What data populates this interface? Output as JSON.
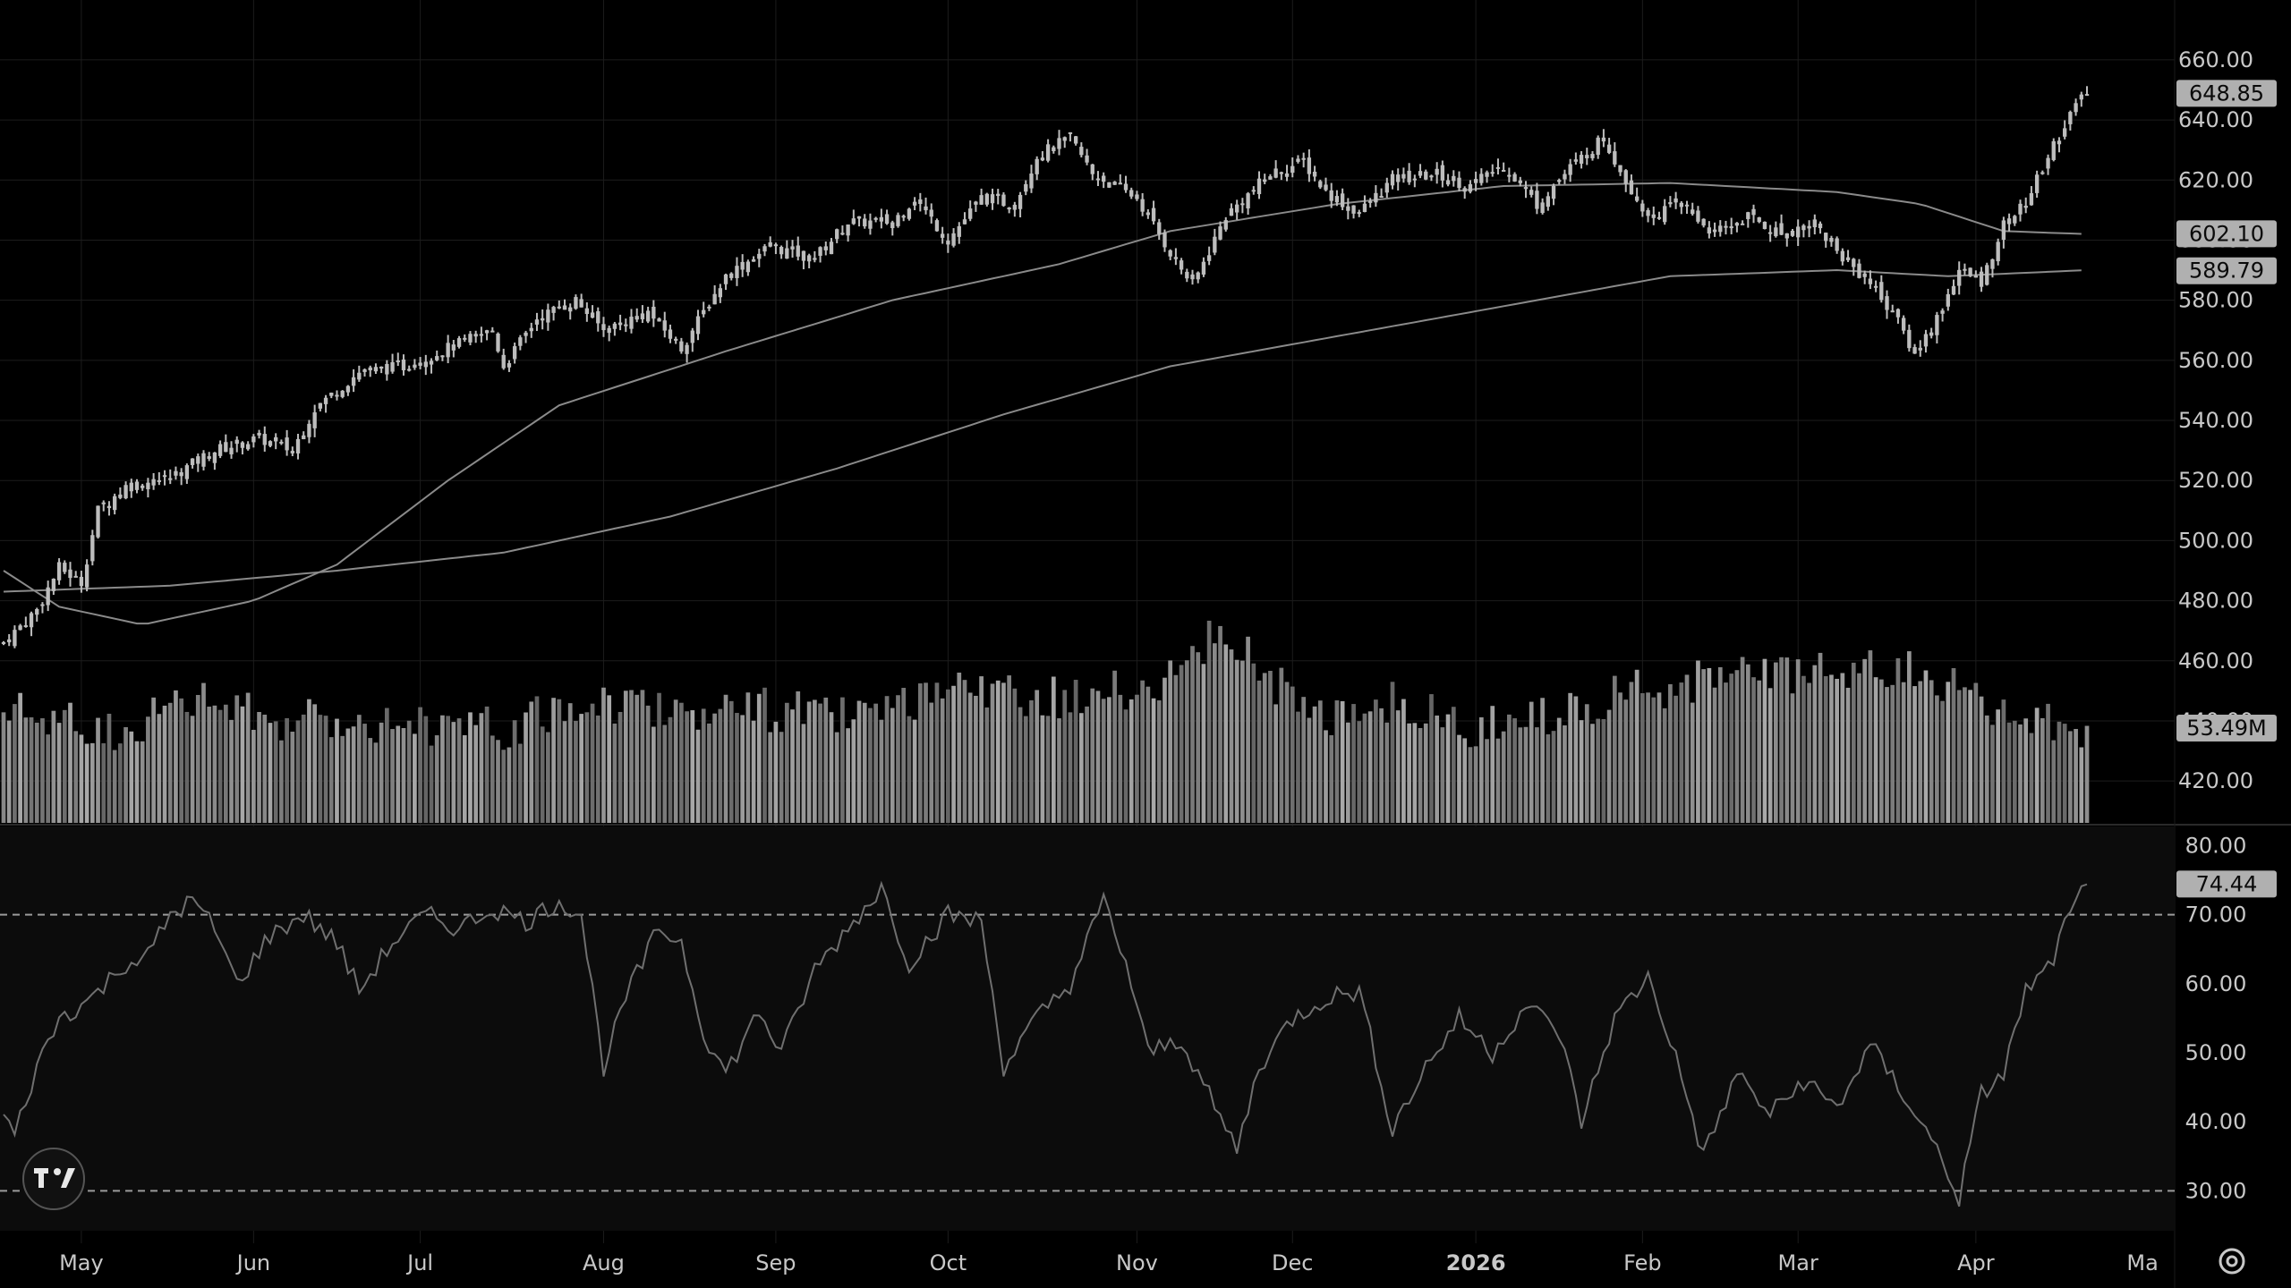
{
  "chart_data": [
    {
      "type": "candlestick",
      "panel": "price",
      "y_ticks": [
        "660.00",
        "640.00",
        "620.00",
        "600.00",
        "580.00",
        "560.00",
        "540.00",
        "520.00",
        "500.00",
        "480.00",
        "460.00",
        "440.00",
        "420.00"
      ],
      "ylim": [
        412,
        668
      ],
      "current_price": "648.85",
      "current_price_value": 648.85,
      "ma_labels": [
        "602.10",
        "589.79"
      ],
      "ma_values": [
        602.1,
        589.79
      ],
      "approx_close_path": [
        {
          "t": 0,
          "v": 466
        },
        {
          "t": 6,
          "v": 477
        },
        {
          "t": 10,
          "v": 491
        },
        {
          "t": 14,
          "v": 486
        },
        {
          "t": 17,
          "v": 510
        },
        {
          "t": 22,
          "v": 518
        },
        {
          "t": 30,
          "v": 521
        },
        {
          "t": 38,
          "v": 530
        },
        {
          "t": 46,
          "v": 534
        },
        {
          "t": 52,
          "v": 530
        },
        {
          "t": 56,
          "v": 544
        },
        {
          "t": 64,
          "v": 556
        },
        {
          "t": 72,
          "v": 558
        },
        {
          "t": 80,
          "v": 564
        },
        {
          "t": 88,
          "v": 570
        },
        {
          "t": 90,
          "v": 558
        },
        {
          "t": 96,
          "v": 574
        },
        {
          "t": 103,
          "v": 580
        },
        {
          "t": 108,
          "v": 570
        },
        {
          "t": 116,
          "v": 576
        },
        {
          "t": 122,
          "v": 564
        },
        {
          "t": 130,
          "v": 588
        },
        {
          "t": 138,
          "v": 598
        },
        {
          "t": 146,
          "v": 594
        },
        {
          "t": 152,
          "v": 606
        },
        {
          "t": 160,
          "v": 606
        },
        {
          "t": 164,
          "v": 614
        },
        {
          "t": 170,
          "v": 600
        },
        {
          "t": 176,
          "v": 614
        },
        {
          "t": 182,
          "v": 612
        },
        {
          "t": 186,
          "v": 628
        },
        {
          "t": 192,
          "v": 634
        },
        {
          "t": 196,
          "v": 622
        },
        {
          "t": 204,
          "v": 614
        },
        {
          "t": 210,
          "v": 596
        },
        {
          "t": 214,
          "v": 585
        },
        {
          "t": 220,
          "v": 608
        },
        {
          "t": 228,
          "v": 622
        },
        {
          "t": 234,
          "v": 626
        },
        {
          "t": 238,
          "v": 616
        },
        {
          "t": 244,
          "v": 609
        },
        {
          "t": 250,
          "v": 620
        },
        {
          "t": 258,
          "v": 622
        },
        {
          "t": 264,
          "v": 618
        },
        {
          "t": 270,
          "v": 625
        },
        {
          "t": 276,
          "v": 612
        },
        {
          "t": 282,
          "v": 624
        },
        {
          "t": 288,
          "v": 634
        },
        {
          "t": 292,
          "v": 620
        },
        {
          "t": 296,
          "v": 608
        },
        {
          "t": 302,
          "v": 612
        },
        {
          "t": 308,
          "v": 602
        },
        {
          "t": 314,
          "v": 608
        },
        {
          "t": 320,
          "v": 602
        },
        {
          "t": 326,
          "v": 606
        },
        {
          "t": 330,
          "v": 596
        },
        {
          "t": 336,
          "v": 586
        },
        {
          "t": 340,
          "v": 576
        },
        {
          "t": 344,
          "v": 562
        },
        {
          "t": 348,
          "v": 574
        },
        {
          "t": 352,
          "v": 590
        },
        {
          "t": 356,
          "v": 586
        },
        {
          "t": 360,
          "v": 605
        },
        {
          "t": 364,
          "v": 612
        },
        {
          "t": 368,
          "v": 628
        },
        {
          "t": 372,
          "v": 642
        },
        {
          "t": 375,
          "v": 649
        }
      ],
      "ma_long_path": [
        {
          "t": 0,
          "v": 483
        },
        {
          "t": 30,
          "v": 485
        },
        {
          "t": 60,
          "v": 490
        },
        {
          "t": 90,
          "v": 496
        },
        {
          "t": 120,
          "v": 508
        },
        {
          "t": 150,
          "v": 524
        },
        {
          "t": 180,
          "v": 542
        },
        {
          "t": 210,
          "v": 558
        },
        {
          "t": 240,
          "v": 568
        },
        {
          "t": 270,
          "v": 578
        },
        {
          "t": 300,
          "v": 588
        },
        {
          "t": 330,
          "v": 590
        },
        {
          "t": 350,
          "v": 588
        },
        {
          "t": 375,
          "v": 590
        }
      ],
      "ma_mid_path": [
        {
          "t": 0,
          "v": 490
        },
        {
          "t": 10,
          "v": 478
        },
        {
          "t": 25,
          "v": 472
        },
        {
          "t": 45,
          "v": 480
        },
        {
          "t": 60,
          "v": 492
        },
        {
          "t": 80,
          "v": 520
        },
        {
          "t": 100,
          "v": 545
        },
        {
          "t": 130,
          "v": 563
        },
        {
          "t": 160,
          "v": 580
        },
        {
          "t": 190,
          "v": 592
        },
        {
          "t": 210,
          "v": 603
        },
        {
          "t": 240,
          "v": 612
        },
        {
          "t": 270,
          "v": 618
        },
        {
          "t": 300,
          "v": 619
        },
        {
          "t": 330,
          "v": 616
        },
        {
          "t": 345,
          "v": 612
        },
        {
          "t": 360,
          "v": 603
        },
        {
          "t": 375,
          "v": 602
        }
      ]
    },
    {
      "type": "bar",
      "panel": "volume",
      "current_volume": "53.49M",
      "approx_volume_relative_path": [
        {
          "t": 0,
          "v": 0.55
        },
        {
          "t": 20,
          "v": 0.45
        },
        {
          "t": 35,
          "v": 0.6
        },
        {
          "t": 50,
          "v": 0.5
        },
        {
          "t": 70,
          "v": 0.5
        },
        {
          "t": 90,
          "v": 0.45
        },
        {
          "t": 105,
          "v": 0.6
        },
        {
          "t": 125,
          "v": 0.55
        },
        {
          "t": 140,
          "v": 0.55
        },
        {
          "t": 155,
          "v": 0.5
        },
        {
          "t": 175,
          "v": 0.65
        },
        {
          "t": 195,
          "v": 0.6
        },
        {
          "t": 210,
          "v": 0.7
        },
        {
          "t": 220,
          "v": 0.95
        },
        {
          "t": 235,
          "v": 0.5
        },
        {
          "t": 250,
          "v": 0.6
        },
        {
          "t": 265,
          "v": 0.45
        },
        {
          "t": 280,
          "v": 0.55
        },
        {
          "t": 295,
          "v": 0.65
        },
        {
          "t": 310,
          "v": 0.7
        },
        {
          "t": 330,
          "v": 0.72
        },
        {
          "t": 345,
          "v": 0.75
        },
        {
          "t": 360,
          "v": 0.5
        },
        {
          "t": 375,
          "v": 0.45
        }
      ]
    },
    {
      "type": "line",
      "panel": "oscillator",
      "y_ticks": [
        "80.00",
        "70.00",
        "60.00",
        "50.00",
        "40.00",
        "30.00"
      ],
      "ylim": [
        25,
        82
      ],
      "upper_band": 70,
      "lower_band": 30,
      "current_value": "74.44",
      "current_value_num": 74.44,
      "approx_path": [
        {
          "t": 0,
          "v": 41
        },
        {
          "t": 2,
          "v": 38
        },
        {
          "t": 6,
          "v": 48
        },
        {
          "t": 10,
          "v": 55
        },
        {
          "t": 16,
          "v": 58
        },
        {
          "t": 22,
          "v": 63
        },
        {
          "t": 26,
          "v": 64
        },
        {
          "t": 30,
          "v": 70
        },
        {
          "t": 34,
          "v": 72
        },
        {
          "t": 38,
          "v": 68
        },
        {
          "t": 42,
          "v": 60
        },
        {
          "t": 48,
          "v": 67
        },
        {
          "t": 54,
          "v": 70
        },
        {
          "t": 60,
          "v": 66
        },
        {
          "t": 64,
          "v": 59
        },
        {
          "t": 70,
          "v": 66
        },
        {
          "t": 76,
          "v": 70
        },
        {
          "t": 82,
          "v": 68
        },
        {
          "t": 88,
          "v": 71
        },
        {
          "t": 94,
          "v": 69
        },
        {
          "t": 100,
          "v": 72
        },
        {
          "t": 104,
          "v": 70
        },
        {
          "t": 108,
          "v": 48
        },
        {
          "t": 112,
          "v": 58
        },
        {
          "t": 118,
          "v": 68
        },
        {
          "t": 122,
          "v": 66
        },
        {
          "t": 126,
          "v": 53
        },
        {
          "t": 130,
          "v": 47
        },
        {
          "t": 136,
          "v": 56
        },
        {
          "t": 140,
          "v": 50
        },
        {
          "t": 146,
          "v": 62
        },
        {
          "t": 152,
          "v": 68
        },
        {
          "t": 158,
          "v": 74
        },
        {
          "t": 163,
          "v": 63
        },
        {
          "t": 170,
          "v": 70
        },
        {
          "t": 176,
          "v": 69
        },
        {
          "t": 180,
          "v": 48
        },
        {
          "t": 186,
          "v": 55
        },
        {
          "t": 192,
          "v": 60
        },
        {
          "t": 198,
          "v": 72
        },
        {
          "t": 202,
          "v": 63
        },
        {
          "t": 206,
          "v": 50
        },
        {
          "t": 212,
          "v": 52
        },
        {
          "t": 218,
          "v": 42
        },
        {
          "t": 222,
          "v": 36
        },
        {
          "t": 226,
          "v": 48
        },
        {
          "t": 232,
          "v": 55
        },
        {
          "t": 238,
          "v": 58
        },
        {
          "t": 244,
          "v": 59
        },
        {
          "t": 250,
          "v": 39
        },
        {
          "t": 256,
          "v": 48
        },
        {
          "t": 262,
          "v": 55
        },
        {
          "t": 268,
          "v": 50
        },
        {
          "t": 274,
          "v": 57
        },
        {
          "t": 280,
          "v": 53
        },
        {
          "t": 284,
          "v": 40
        },
        {
          "t": 290,
          "v": 55
        },
        {
          "t": 296,
          "v": 61
        },
        {
          "t": 300,
          "v": 52
        },
        {
          "t": 306,
          "v": 35
        },
        {
          "t": 312,
          "v": 47
        },
        {
          "t": 318,
          "v": 41
        },
        {
          "t": 324,
          "v": 46
        },
        {
          "t": 330,
          "v": 42
        },
        {
          "t": 336,
          "v": 51
        },
        {
          "t": 342,
          "v": 44
        },
        {
          "t": 348,
          "v": 36
        },
        {
          "t": 352,
          "v": 29
        },
        {
          "t": 356,
          "v": 44
        },
        {
          "t": 360,
          "v": 47
        },
        {
          "t": 364,
          "v": 59
        },
        {
          "t": 368,
          "v": 62
        },
        {
          "t": 372,
          "v": 70
        },
        {
          "t": 375,
          "v": 74.4
        }
      ]
    }
  ],
  "time_axis": {
    "t_max": 375,
    "labels": [
      {
        "text": "May",
        "t": 14,
        "bold": false
      },
      {
        "text": "Jun",
        "t": 45,
        "bold": false
      },
      {
        "text": "Jul",
        "t": 75,
        "bold": false
      },
      {
        "text": "Aug",
        "t": 108,
        "bold": false
      },
      {
        "text": "Sep",
        "t": 139,
        "bold": false
      },
      {
        "text": "Oct",
        "t": 170,
        "bold": false
      },
      {
        "text": "Nov",
        "t": 204,
        "bold": false
      },
      {
        "text": "Dec",
        "t": 232,
        "bold": false
      },
      {
        "text": "2026",
        "t": 265,
        "bold": true
      },
      {
        "text": "Feb",
        "t": 295,
        "bold": false
      },
      {
        "text": "Mar",
        "t": 323,
        "bold": false
      },
      {
        "text": "Apr",
        "t": 355,
        "bold": false
      },
      {
        "text": "Ma",
        "t": 385,
        "bold": false
      }
    ]
  },
  "colors": {
    "background": "#000000",
    "grid": "#1c1c1c",
    "candle": "#bdbdbd",
    "ma_line": "#8a8a8a",
    "volume_bar": "#8f8f8f",
    "osc_line": "#6f6f6f",
    "osc_bg": "#0c0c0c",
    "tag_bg": "#b0b0b0"
  },
  "icons": {
    "logo": "tradingview-logo-icon",
    "settings": "gear-icon"
  }
}
